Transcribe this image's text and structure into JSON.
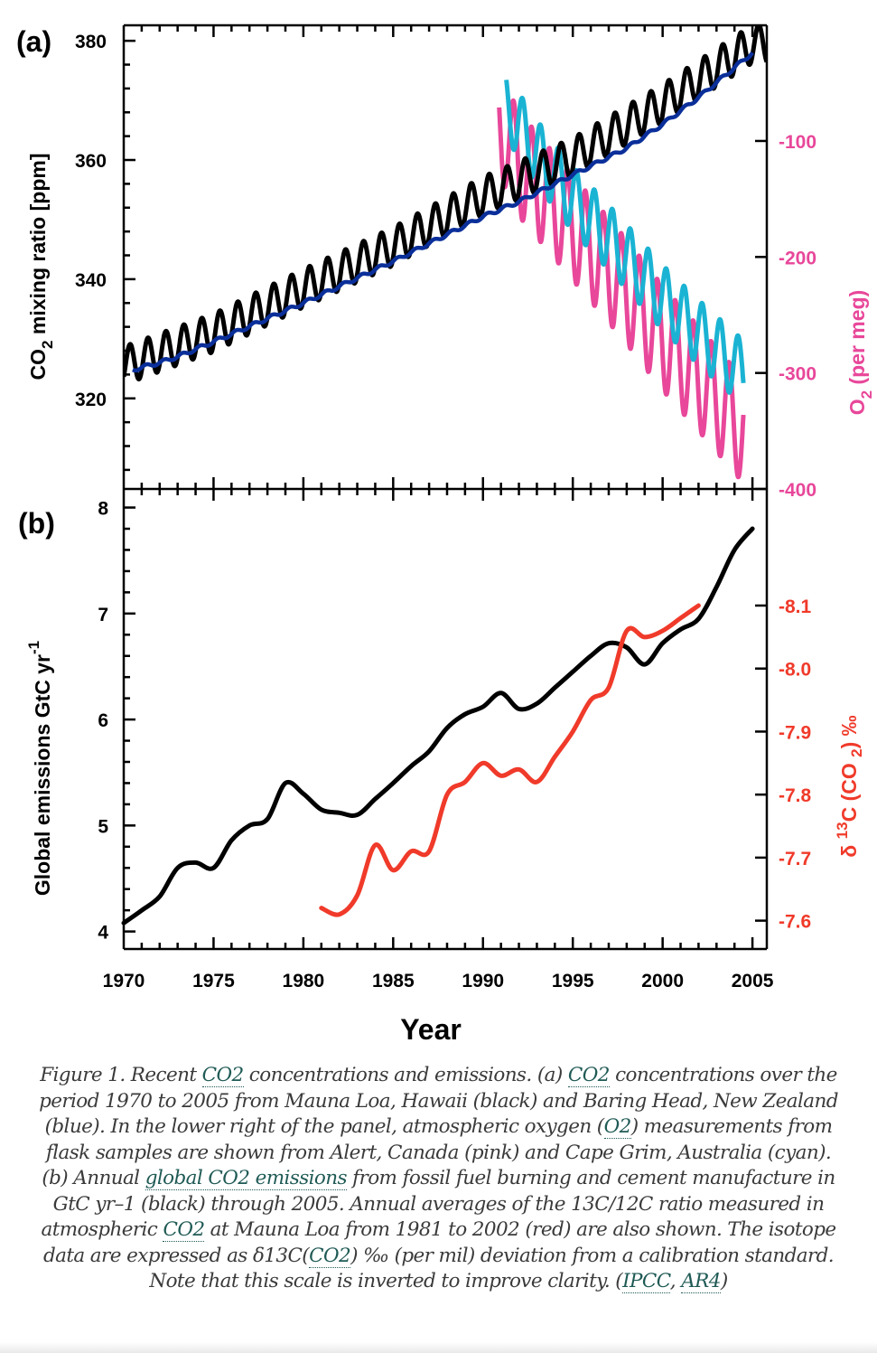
{
  "chart_data": [
    {
      "panel": "a",
      "panel_label": "(a)",
      "type": "line",
      "xlabel": "Year",
      "xlim": [
        1970,
        2005.8
      ],
      "x_ticks": [
        1970,
        1975,
        1980,
        1985,
        1990,
        1995,
        2000,
        2005
      ],
      "ylabel_left": {
        "main": "CO",
        "sub": "2",
        "rest": " mixing ratio [ppm]"
      },
      "ylim_left": [
        304.8,
        382.6
      ],
      "y_ticks_left": [
        320,
        340,
        360,
        380
      ],
      "ylabel_right": {
        "main": "O",
        "sub": "2",
        "rest": " (per meg)"
      },
      "ylim_right": [
        -400,
        -0.3
      ],
      "y_ticks_right": [
        -100,
        -200,
        -300,
        -400
      ],
      "series": [
        {
          "name": "Mauna Loa, Hawaii",
          "color": "#000000",
          "axis": "left",
          "seasonal": true,
          "trend": {
            "x": [
              1970,
              1975,
              1980,
              1985,
              1990,
              1995,
              2000,
              2005
            ],
            "y": [
              325.5,
              331,
              338.5,
              345.5,
              354,
              360.5,
              369.5,
              379.5
            ]
          },
          "amplitude": 3.2
        },
        {
          "name": "Baring Head, New Zealand",
          "color": "#0a2f9a",
          "axis": "left",
          "seasonal": false,
          "trend": {
            "x": [
              1970.5,
              1972,
              1973,
              1975,
              1980,
              1985,
              1990,
              1992,
              1995,
              1998,
              2000,
              2002,
              2005
            ],
            "y": [
              324.8,
              326,
              327,
              329.5,
              336,
              343,
              350.5,
              353,
              357.5,
              362,
              366,
              370.5,
              378
            ]
          },
          "amplitude": 0.3
        },
        {
          "name": "Alert, Canada O2",
          "color": "#e8479a",
          "axis": "right",
          "seasonal": true,
          "trend": {
            "x": [
              1990.9,
              1992,
              1995,
              1998,
              2000,
              2002,
              2004.5
            ],
            "y": [
              -85,
              -120,
              -175,
              -230,
              -270,
              -305,
              -350
            ]
          },
          "amplitude": 45
        },
        {
          "name": "Cape Grim, Australia O2",
          "color": "#1ab3d3",
          "axis": "right",
          "seasonal": true,
          "trend": {
            "x": [
              1991.3,
              1993,
              1995,
              1998,
              2000,
              2002,
              2004.5
            ],
            "y": [
              -70,
              -110,
              -150,
              -200,
              -235,
              -265,
              -300
            ]
          },
          "amplitude": 28
        }
      ]
    },
    {
      "panel": "b",
      "panel_label": "(b)",
      "type": "line",
      "xlabel": "Year",
      "xlim": [
        1970,
        2005.8
      ],
      "x_ticks": [
        1970,
        1975,
        1980,
        1985,
        1990,
        1995,
        2000,
        2005
      ],
      "ylabel_left": {
        "main": "Global emissions GtC yr",
        "sup": "-1"
      },
      "ylim_left": [
        3.92,
        8.09
      ],
      "y_ticks_left": [
        4,
        5,
        6,
        7,
        8
      ],
      "ylabel_right": {
        "pre": "δ ",
        "sup": "13",
        "main": "C (CO ",
        "sub": "2",
        "rest": ") ‰"
      },
      "ylim_right": [
        -7.555,
        -8.285
      ],
      "inverted_right": true,
      "y_ticks_right": [
        -8.1,
        -8.0,
        -7.9,
        -7.8,
        -7.7,
        -7.6
      ],
      "y_tick_labels_right": [
        "-8.1",
        "-8.0",
        "-7.9",
        "-7.8",
        "-7.7",
        "-7.6"
      ],
      "series": [
        {
          "name": "Global CO2 emissions (fossil fuel + cement)",
          "color": "#000000",
          "axis": "left",
          "x": [
            1970,
            1971,
            1972,
            1973,
            1974,
            1975,
            1976,
            1977,
            1978,
            1979,
            1980,
            1981,
            1982,
            1983,
            1984,
            1985,
            1986,
            1987,
            1988,
            1989,
            1990,
            1991,
            1992,
            1993,
            1994,
            1995,
            1996,
            1997,
            1998,
            1999,
            2000,
            2001,
            2002,
            2003,
            2004,
            2005
          ],
          "y": [
            4.08,
            4.2,
            4.33,
            4.6,
            4.65,
            4.6,
            4.86,
            5.0,
            5.06,
            5.4,
            5.3,
            5.15,
            5.12,
            5.1,
            5.25,
            5.4,
            5.56,
            5.7,
            5.92,
            6.05,
            6.12,
            6.25,
            6.1,
            6.15,
            6.3,
            6.45,
            6.6,
            6.72,
            6.68,
            6.52,
            6.72,
            6.85,
            6.95,
            7.25,
            7.6,
            7.8
          ]
        },
        {
          "name": "δ13C Mauna Loa",
          "color": "#f03a2a",
          "axis": "right",
          "x": [
            1981,
            1982,
            1983,
            1984,
            1985,
            1986,
            1987,
            1988,
            1989,
            1990,
            1991,
            1992,
            1993,
            1994,
            1995,
            1996,
            1997,
            1998,
            1999,
            2000,
            2001,
            2002
          ],
          "y": [
            -7.62,
            -7.61,
            -7.64,
            -7.72,
            -7.68,
            -7.71,
            -7.71,
            -7.8,
            -7.82,
            -7.85,
            -7.83,
            -7.84,
            -7.82,
            -7.86,
            -7.9,
            -7.95,
            -7.97,
            -8.06,
            -8.05,
            -8.06,
            -8.08,
            -8.1
          ]
        }
      ]
    }
  ],
  "caption": {
    "segments": [
      {
        "t": "Figure 1. Recent "
      },
      {
        "t": "CO2",
        "link": true
      },
      {
        "t": " concentrations and emissions. (a) "
      },
      {
        "t": "CO2",
        "link": true
      },
      {
        "t": " concentrations over the period 1970 to 2005 from Mauna Loa, Hawaii (black) and Baring Head, New Zealand (blue). In the lower right of the panel, atmospheric oxygen ("
      },
      {
        "t": "O2",
        "link": true
      },
      {
        "t": ") measurements from flask samples are shown from Alert, Canada (pink) and Cape Grim, Australia (cyan). (b) Annual "
      },
      {
        "t": "global CO2 emissions",
        "link": true
      },
      {
        "t": " from fossil fuel burning and cement manufacture in GtC yr–1 (black) through 2005. Annual averages of the 13C/12C ratio measured in atmospheric "
      },
      {
        "t": "CO2",
        "link": true
      },
      {
        "t": " at Mauna Loa from 1981 to 2002 (red) are also shown. The isotope data are expressed as δ13C("
      },
      {
        "t": "CO2",
        "link": true
      },
      {
        "t": ") ‰ (per mil) deviation from a calibration standard. Note that this scale is inverted to improve clarity. ("
      },
      {
        "t": "IPCC",
        "link": true
      },
      {
        "t": ", "
      },
      {
        "t": "AR4",
        "link": true
      },
      {
        "t": ")"
      }
    ]
  }
}
